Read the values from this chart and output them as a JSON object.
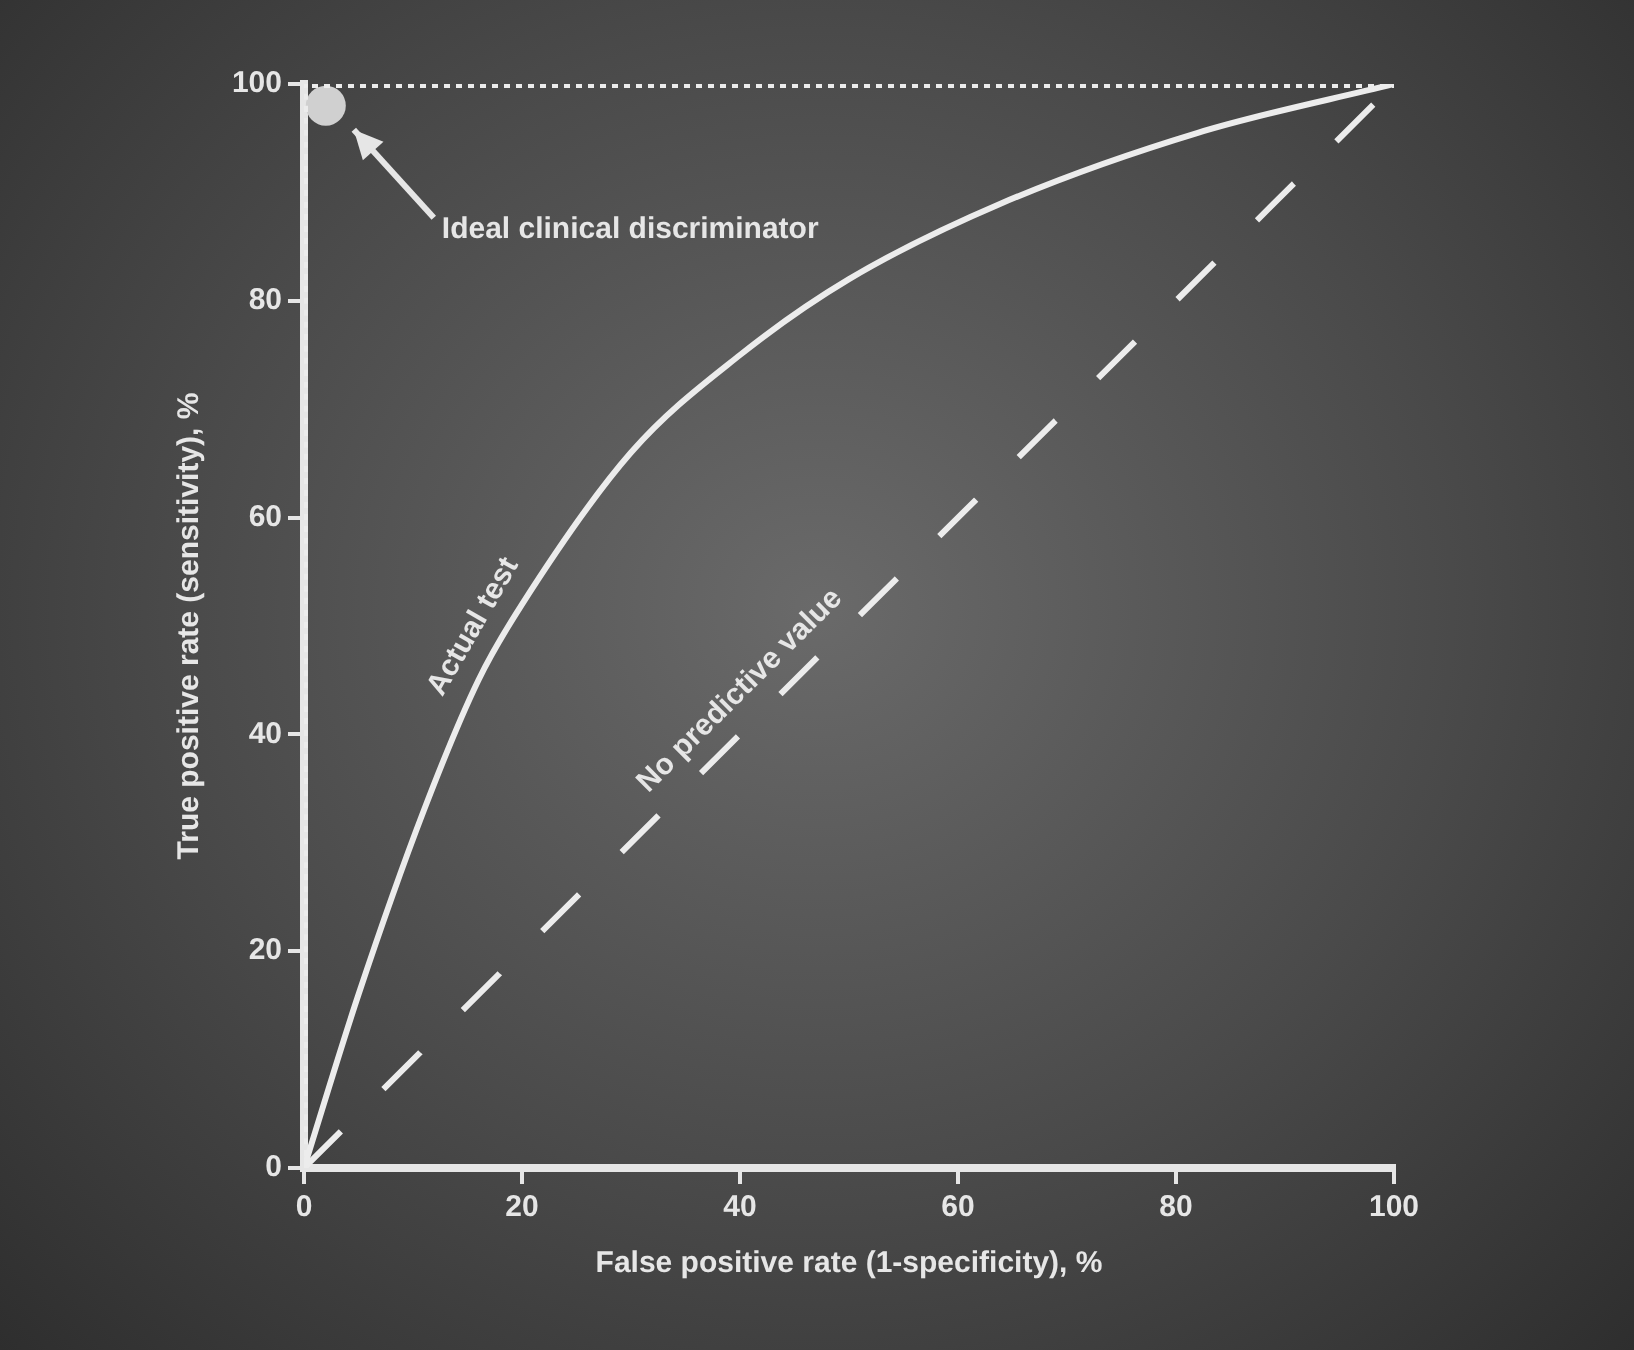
{
  "chart_data": {
    "type": "line",
    "xlabel": "False positive rate (1-specificity), %",
    "ylabel": "True positive rate (sensitivity), %",
    "xlim": [
      0,
      100
    ],
    "ylim": [
      0,
      100
    ],
    "xticks": [
      0,
      20,
      40,
      60,
      80,
      100
    ],
    "yticks": [
      0,
      20,
      40,
      60,
      80,
      100
    ],
    "grid": false,
    "legend": false,
    "marker": "none",
    "series": [
      {
        "name": "Actual test",
        "color": "#ececec",
        "line_style": "solid",
        "x": [
          0,
          5,
          11,
          16,
          20,
          30,
          40,
          50,
          64,
          82,
          100
        ],
        "values": [
          0,
          16,
          33,
          45,
          52,
          66,
          75,
          82,
          89,
          95.5,
          100
        ]
      },
      {
        "name": "No predictive value",
        "color": "#ececec",
        "line_style": "dashed",
        "x": [
          0,
          100
        ],
        "values": [
          0,
          100
        ]
      },
      {
        "color": "#ececec",
        "line_style": "dotted",
        "x": [
          0,
          0,
          100
        ],
        "values": [
          0,
          100,
          100
        ]
      },
      {
        "type": "scatter",
        "color": "#d0d0d0",
        "marker": "circle",
        "x": [
          2
        ],
        "values": [
          98
        ]
      }
    ],
    "annotations": [
      "Ideal clinical discriminator"
    ]
  }
}
